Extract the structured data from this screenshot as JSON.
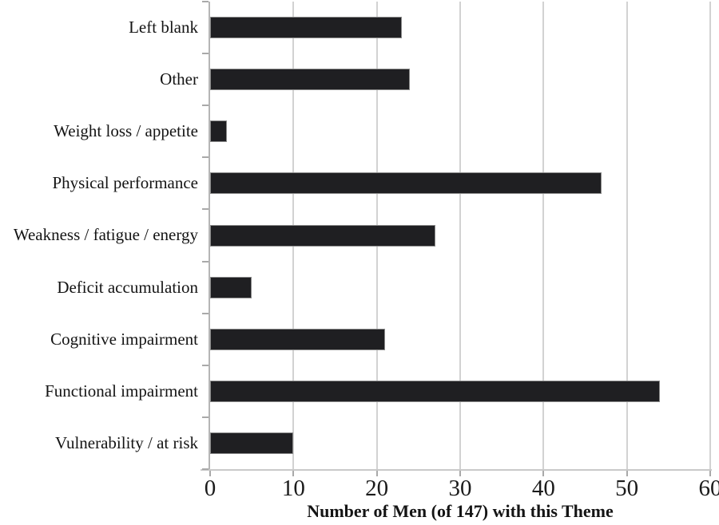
{
  "chart_data": {
    "type": "bar",
    "orientation": "horizontal",
    "title": "",
    "xlabel": "Number of Men (of 147) with this Theme",
    "ylabel": "",
    "categories": [
      "Left blank",
      "Other",
      "Weight loss  / appetite",
      "Physical performance",
      "Weakness / fatigue / energy",
      "Deficit accumulation",
      "Cognitive impairment",
      "Functional impairment",
      "Vulnerability / at risk"
    ],
    "values": [
      23,
      24,
      2,
      47,
      27,
      5,
      21,
      54,
      10
    ],
    "xlim": [
      0,
      60
    ],
    "xticks": [
      0,
      10,
      20,
      30,
      40,
      50,
      60
    ],
    "grid": "vertical-gridlines-on",
    "legend": "none",
    "colors": {
      "bar_fill": "#1f1f22",
      "bar_border": "#8a8a8a",
      "gridline": "#d2d2d2",
      "axis_line": "#b5b5b5",
      "tick_mark": "#a9a9a9",
      "text": "#141414",
      "background": "#ffffff"
    }
  }
}
